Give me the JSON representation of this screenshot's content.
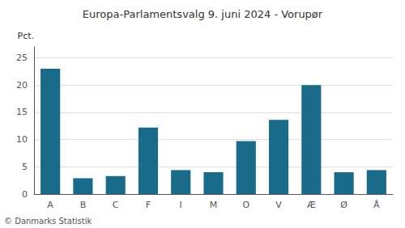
{
  "chart_data": {
    "type": "bar",
    "title": "Europa-Parlamentsvalg 9. juni 2024 - Vorupør",
    "categories": [
      "A",
      "B",
      "C",
      "F",
      "I",
      "M",
      "O",
      "V",
      "Æ",
      "Ø",
      "Å"
    ],
    "values": [
      23.0,
      2.9,
      3.3,
      12.2,
      4.4,
      4.0,
      9.7,
      13.6,
      20.0,
      4.0,
      4.4
    ],
    "color": "#1a6b8a",
    "ylabel": "Pct.",
    "ylim": [
      0,
      27
    ],
    "yticks": [
      0,
      5,
      10,
      15,
      20,
      25
    ],
    "grid": true,
    "footer": "© Danmarks Statistik"
  }
}
